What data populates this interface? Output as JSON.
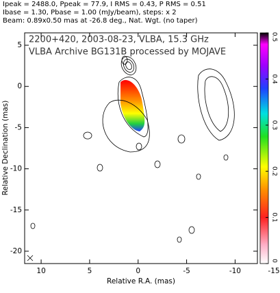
{
  "header": [
    "Ipeak = 2488.0, Ppeak = 77.9, I RMS = 0.43, P RMS = 0.51",
    "Ibase = 1.30, Pbase = 1.00 (mJy/beam), steps: x 2",
    "Beam: 0.89x0.50 mas at -26.8 deg., Nat. Wgt. (no taper)"
  ],
  "chart_data": {
    "type": "contour",
    "title": [
      "2200+420, 2003-08-23, VLBA, 15.3 GHz",
      "VLBA Archive BG131B processed by MOJAVE"
    ],
    "xlabel": "Relative R.A. (mas)",
    "ylabel": "Relative Declination (mas)",
    "xlim": [
      11.7,
      -12.3
    ],
    "xticks": [
      10,
      5,
      0,
      -5,
      -10,
      -15
    ],
    "ylim": [
      -21.5,
      6.5
    ],
    "yticks": [
      5,
      0,
      -5,
      -10,
      -15,
      -20
    ],
    "colorbar": {
      "lim": [
        0,
        0.5
      ],
      "ticks": [
        0,
        0.1,
        0.2,
        0.3,
        0.4,
        0.5
      ]
    }
  }
}
